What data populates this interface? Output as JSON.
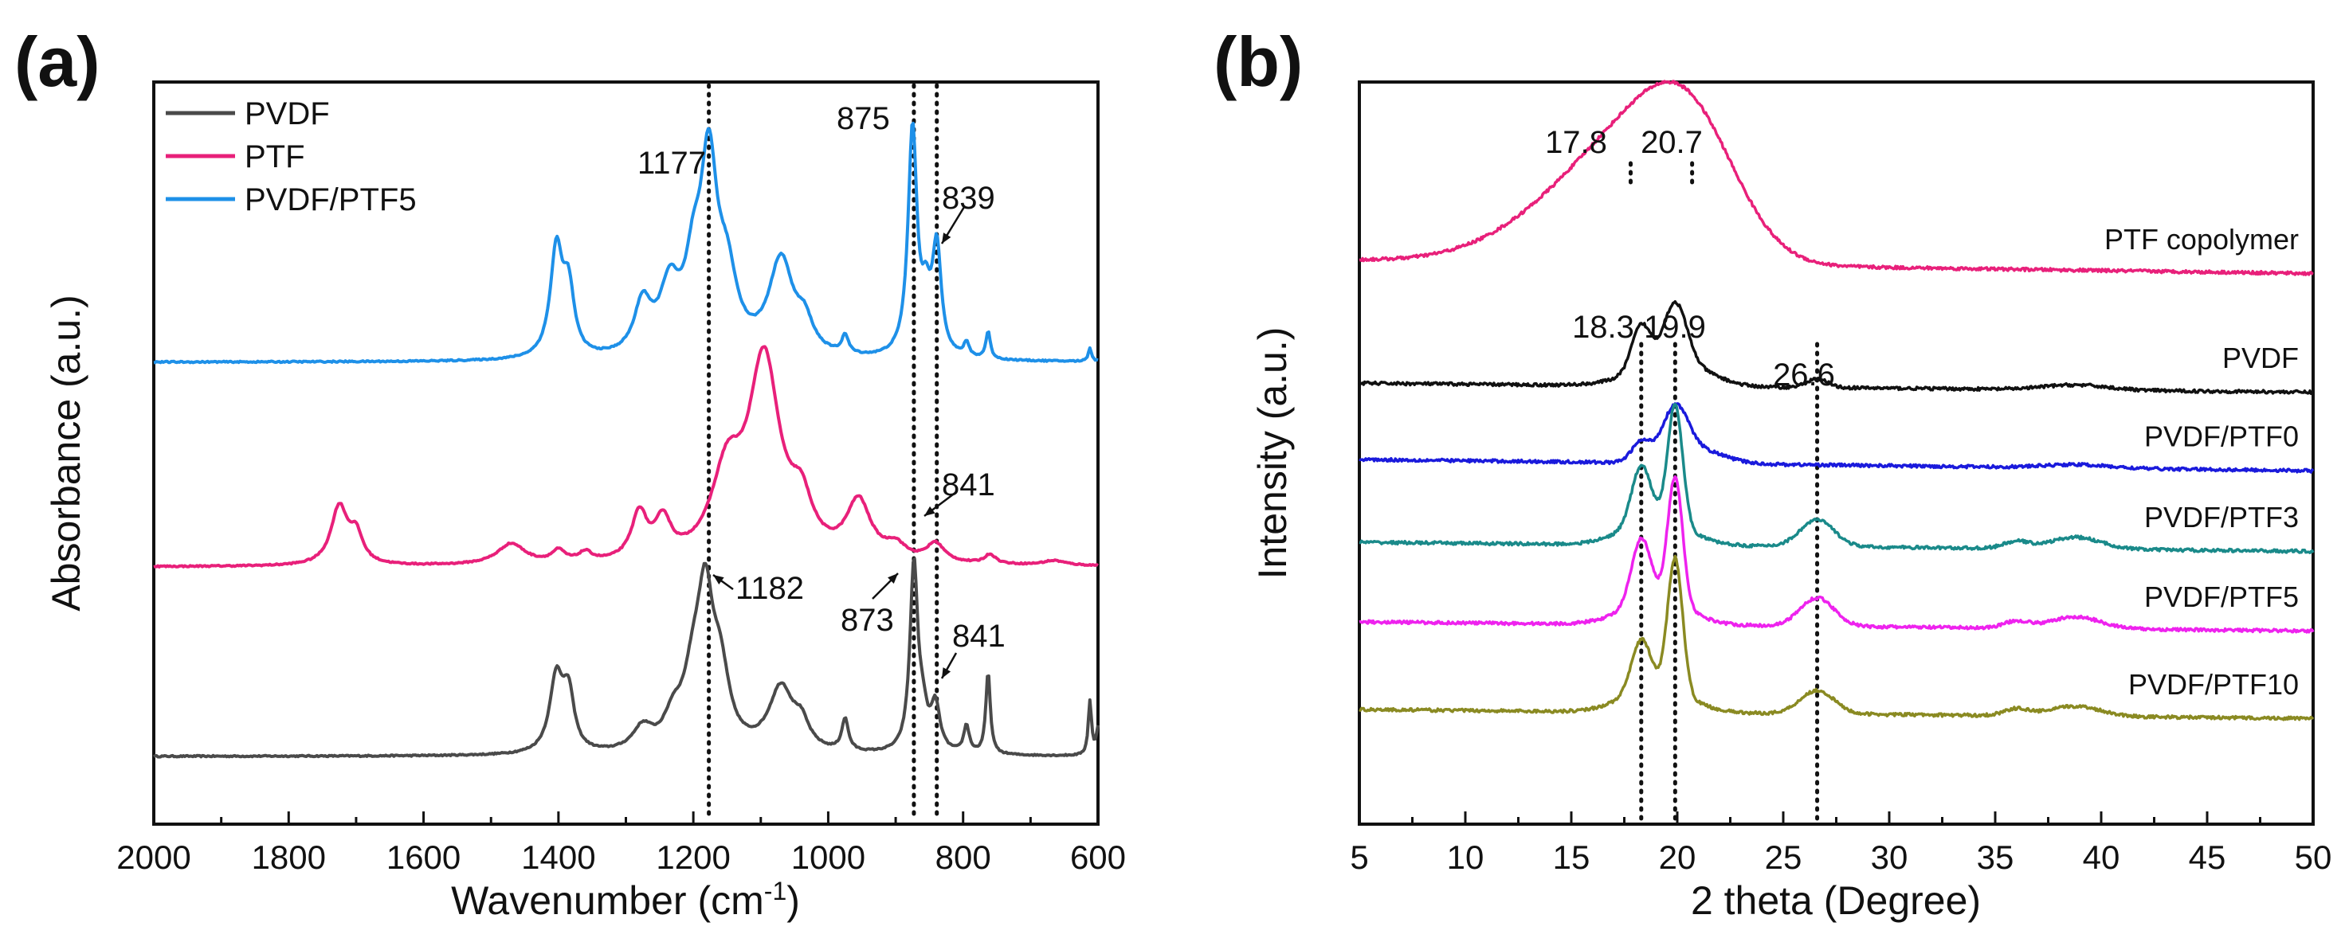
{
  "chart_data": [
    {
      "type": "line",
      "panel": "(a)",
      "xlabel": "Wavenumber (cm",
      "xlabel_sup": "-1",
      "xlabel_end": ")",
      "ylabel": "Absorbance (a.u.)",
      "xlim": [
        2000,
        600
      ],
      "x_reversed": true,
      "xticks": [
        2000,
        1800,
        1600,
        1400,
        1200,
        1000,
        800,
        600
      ],
      "legend": [
        "PVDF",
        "PTF",
        "PVDF/PTF5"
      ],
      "legend_position": "top-left",
      "series": [
        {
          "name": "PVDF",
          "color": "#4a4a4a",
          "offset": 0,
          "base": 0,
          "peaks": [
            [
              1403,
              0.33,
              12
            ],
            [
              1385,
              0.24,
              10
            ],
            [
              1275,
              0.1,
              18
            ],
            [
              1230,
              0.12,
              16
            ],
            [
              1200,
              0.28,
              18
            ],
            [
              1182,
              0.58,
              14
            ],
            [
              1160,
              0.3,
              16
            ],
            [
              1070,
              0.28,
              22
            ],
            [
              1040,
              0.1,
              14
            ],
            [
              975,
              0.14,
              6
            ],
            [
              873,
              0.82,
              7
            ],
            [
              860,
              0.14,
              8
            ],
            [
              841,
              0.2,
              8
            ],
            [
              795,
              0.12,
              5
            ],
            [
              763,
              0.36,
              4
            ],
            [
              612,
              0.24,
              3
            ],
            [
              600,
              0.12,
              3
            ]
          ]
        },
        {
          "name": "PTF",
          "color": "#e8207a",
          "offset": 0.95,
          "base": 0,
          "peaks": [
            [
              1725,
              0.25,
              15
            ],
            [
              1700,
              0.12,
              12
            ],
            [
              1470,
              0.09,
              25
            ],
            [
              1400,
              0.05,
              12
            ],
            [
              1360,
              0.04,
              12
            ],
            [
              1280,
              0.2,
              14
            ],
            [
              1245,
              0.16,
              14
            ],
            [
              1150,
              0.35,
              28
            ],
            [
              1095,
              0.85,
              28
            ],
            [
              1040,
              0.2,
              20
            ],
            [
              955,
              0.25,
              22
            ],
            [
              900,
              0.06,
              18
            ],
            [
              841,
              0.08,
              16
            ],
            [
              760,
              0.04,
              10
            ],
            [
              665,
              0.02,
              20
            ]
          ]
        },
        {
          "name": "PVDF/PTF5",
          "color": "#1e90e8",
          "offset": 1.9,
          "base": 0,
          "peaks": [
            [
              1403,
              0.47,
              11
            ],
            [
              1385,
              0.28,
              10
            ],
            [
              1275,
              0.22,
              15
            ],
            [
              1235,
              0.28,
              18
            ],
            [
              1200,
              0.3,
              15
            ],
            [
              1177,
              0.8,
              15
            ],
            [
              1150,
              0.3,
              18
            ],
            [
              1070,
              0.42,
              22
            ],
            [
              1035,
              0.12,
              15
            ],
            [
              975,
              0.08,
              6
            ],
            [
              875,
              1.0,
              8
            ],
            [
              855,
              0.2,
              8
            ],
            [
              839,
              0.47,
              8
            ],
            [
              795,
              0.06,
              5
            ],
            [
              763,
              0.12,
              4
            ],
            [
              612,
              0.06,
              3
            ]
          ]
        }
      ],
      "reference_lines": [
        1177,
        873,
        839
      ],
      "annotations": [
        {
          "text": "1177",
          "x": 1177,
          "series": "PVDF/PTF5",
          "arrow": false
        },
        {
          "text": "875",
          "x": 875,
          "series": "PVDF/PTF5",
          "arrow": false
        },
        {
          "text": "839",
          "x": 839,
          "series": "PVDF/PTF5",
          "arrow": true
        },
        {
          "text": "841",
          "x": 841,
          "series": "PTF",
          "arrow": true
        },
        {
          "text": "1182",
          "x": 1182,
          "series": "PVDF",
          "arrow": true
        },
        {
          "text": "873",
          "x": 873,
          "series": "PVDF",
          "arrow": true
        },
        {
          "text": "841",
          "x": 841,
          "series": "PVDF",
          "arrow": true
        }
      ]
    },
    {
      "type": "line",
      "panel": "(b)",
      "xlabel": "2 theta (Degree)",
      "ylabel": "Intensity (a.u.)",
      "xlim": [
        5,
        50
      ],
      "xticks": [
        5,
        10,
        15,
        20,
        25,
        30,
        35,
        40,
        45,
        50
      ],
      "series": [
        {
          "name": "PTF copolymer",
          "color": "#e8207a",
          "offset": 5,
          "base": 0.15,
          "slope": -0.0018,
          "peaks": [
            [
              17.8,
              0.65,
              3.0
            ],
            [
              20.7,
              0.6,
              2.2
            ],
            [
              13.5,
              0.15,
              3.0
            ]
          ]
        },
        {
          "name": "PVDF",
          "color": "#111111",
          "offset": 4,
          "base": 0.08,
          "slope": -0.0012,
          "peaks": [
            [
              18.3,
              0.28,
              0.45
            ],
            [
              19.9,
              0.38,
              0.55
            ],
            [
              20.8,
              0.08,
              1.2
            ],
            [
              26.6,
              0.05,
              0.5
            ],
            [
              38.8,
              0.03,
              1.5
            ],
            [
              18.8,
              0.08,
              1.5
            ]
          ]
        },
        {
          "name": "PVDF/PTF0",
          "color": "#1a1adc",
          "offset": 3,
          "base": 0.1,
          "slope": -0.0015,
          "peaks": [
            [
              18.3,
              0.12,
              0.45
            ],
            [
              19.9,
              0.3,
              0.6
            ],
            [
              21.0,
              0.08,
              1.2
            ],
            [
              38.8,
              0.02,
              1.5
            ]
          ]
        },
        {
          "name": "PVDF/PTF3",
          "color": "#1a8a8a",
          "offset": 2,
          "base": 0.1,
          "slope": -0.0012,
          "peaks": [
            [
              18.3,
              0.34,
              0.45
            ],
            [
              19.9,
              0.72,
              0.35
            ],
            [
              19.0,
              0.15,
              1.5
            ],
            [
              26.6,
              0.16,
              0.8
            ],
            [
              36.0,
              0.04,
              0.6
            ],
            [
              38.8,
              0.07,
              1.2
            ]
          ]
        },
        {
          "name": "PVDF/PTF5",
          "color": "#ee22ee",
          "offset": 1,
          "base": 0.1,
          "slope": -0.0012,
          "peaks": [
            [
              18.3,
              0.38,
              0.45
            ],
            [
              19.9,
              0.76,
              0.35
            ],
            [
              19.0,
              0.15,
              1.5
            ],
            [
              26.6,
              0.17,
              0.8
            ],
            [
              36.0,
              0.04,
              0.6
            ],
            [
              38.8,
              0.07,
              1.2
            ]
          ]
        },
        {
          "name": "PVDF/PTF10",
          "color": "#8a8a22",
          "offset": 0,
          "base": 0.1,
          "slope": -0.0012,
          "peaks": [
            [
              18.3,
              0.3,
              0.45
            ],
            [
              19.9,
              0.8,
              0.35
            ],
            [
              19.0,
              0.15,
              1.5
            ],
            [
              26.6,
              0.14,
              0.8
            ],
            [
              36.0,
              0.04,
              0.6
            ],
            [
              38.8,
              0.06,
              1.2
            ]
          ]
        }
      ],
      "reference_lines": [
        18.3,
        19.9,
        26.6
      ],
      "annotations": [
        {
          "text": "17.8",
          "x": 17.8
        },
        {
          "text": "20.7",
          "x": 20.7
        },
        {
          "text": "18.3",
          "x": 18.3
        },
        {
          "text": "19.9",
          "x": 19.9
        },
        {
          "text": "26.6",
          "x": 26.6
        }
      ]
    }
  ]
}
